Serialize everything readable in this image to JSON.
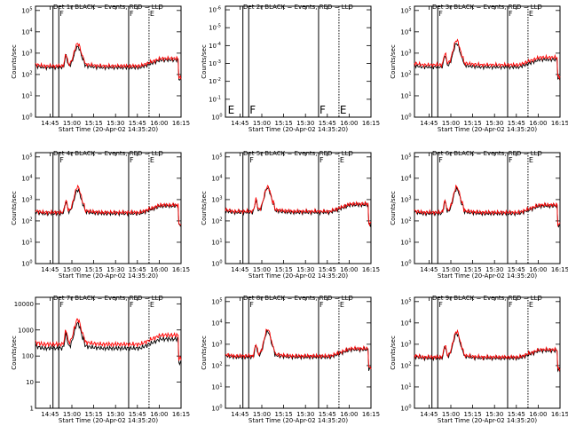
{
  "colors": {
    "events": "#000000",
    "lld": "#ff0000",
    "background": "#ffffff",
    "axis": "#000000"
  },
  "chart_data": [
    {
      "type": "line",
      "panel": 1,
      "title": "Det 1r BLACK = Events, RED = LLD",
      "xlabel": "Start Time (20-Apr-02 14:35:20)",
      "ylabel": "Counts/sec",
      "x_ticks": [
        "14:45",
        "15:00",
        "15:15",
        "15:30",
        "15:45",
        "16:00",
        "16:15"
      ],
      "y_ticks": [
        "10^0",
        "10^1",
        "10^2",
        "10^3",
        "10^4",
        "10^5"
      ],
      "y_scale": "log",
      "ylim_log10": [
        0,
        5.2
      ],
      "marker_letters": [
        "F",
        "F",
        "E"
      ],
      "series": [
        {
          "name": "Events",
          "color": "#000000",
          "level_log10": 2.33,
          "peak_log10": 3.3
        },
        {
          "name": "LLD",
          "color": "#ff0000",
          "level_log10": 2.4,
          "peak_log10": 3.45
        }
      ]
    },
    {
      "type": "line",
      "panel": 2,
      "title": "Det 2r BLACK = Events, RED = LLD",
      "xlabel": "Start Time (20-Apr-02 14:35:20)",
      "ylabel": "Counts/sec",
      "x_ticks": [
        "14:45",
        "15:00",
        "15:15",
        "15:30",
        "15:45",
        "16:00",
        "16:15"
      ],
      "y_ticks": [
        "10^0",
        "10^-1",
        "10^-2",
        "10^-3",
        "10^-4",
        "10^-5",
        "10^-6"
      ],
      "y_scale": "log",
      "ylim_log10": [
        0,
        -6.2
      ],
      "marker_letters": [
        "E",
        "F",
        "F",
        "E"
      ],
      "series": []
    },
    {
      "type": "line",
      "panel": 3,
      "title": "Det 3r BLACK = Events, RED = LLD",
      "xlabel": "Start Time (20-Apr-02 14:35:20)",
      "ylabel": "Counts/sec",
      "x_ticks": [
        "14:45",
        "15:00",
        "15:15",
        "15:30",
        "15:45",
        "16:00",
        "16:15"
      ],
      "y_ticks": [
        "10^0",
        "10^1",
        "10^2",
        "10^3",
        "10^4",
        "10^5"
      ],
      "y_scale": "log",
      "ylim_log10": [
        0,
        5.2
      ],
      "marker_letters": [
        "F",
        "F",
        "E"
      ],
      "series": [
        {
          "name": "Events",
          "color": "#000000",
          "level_log10": 2.35,
          "peak_log10": 3.45
        },
        {
          "name": "LLD",
          "color": "#ff0000",
          "level_log10": 2.45,
          "peak_log10": 3.6
        }
      ]
    },
    {
      "type": "line",
      "panel": 4,
      "title": "Det 4r BLACK = Events, RED = LLD",
      "xlabel": "Start Time (20-Apr-02 14:35:20)",
      "ylabel": "Counts/sec",
      "x_ticks": [
        "14:45",
        "15:00",
        "15:15",
        "15:30",
        "15:45",
        "16:00",
        "16:15"
      ],
      "y_ticks": [
        "10^0",
        "10^1",
        "10^2",
        "10^3",
        "10^4",
        "10^5"
      ],
      "y_scale": "log",
      "ylim_log10": [
        0,
        5.2
      ],
      "marker_letters": [
        "F",
        "F",
        "E"
      ],
      "series": [
        {
          "name": "Events",
          "color": "#000000",
          "level_log10": 2.35,
          "peak_log10": 3.45
        },
        {
          "name": "LLD",
          "color": "#ff0000",
          "level_log10": 2.4,
          "peak_log10": 3.6
        }
      ]
    },
    {
      "type": "line",
      "panel": 5,
      "title": "Det 5r BLACK = Events, RED = LLD",
      "xlabel": "Start Time (20-Apr-02 14:35:20)",
      "ylabel": "Counts/sec",
      "x_ticks": [
        "14:45",
        "15:00",
        "15:15",
        "15:30",
        "15:45",
        "16:00",
        "16:15"
      ],
      "y_ticks": [
        "10^0",
        "10^1",
        "10^2",
        "10^3",
        "10^4",
        "10^5"
      ],
      "y_scale": "log",
      "ylim_log10": [
        0,
        5.2
      ],
      "marker_letters": [
        "F",
        "F",
        "E"
      ],
      "series": [
        {
          "name": "Events",
          "color": "#000000",
          "level_log10": 2.4,
          "peak_log10": 3.55
        },
        {
          "name": "LLD",
          "color": "#ff0000",
          "level_log10": 2.45,
          "peak_log10": 3.6
        }
      ]
    },
    {
      "type": "line",
      "panel": 6,
      "title": "Det 6r BLACK = Events, RED = LLD",
      "xlabel": "Start Time (20-Apr-02 14:35:20)",
      "ylabel": "Counts/sec",
      "x_ticks": [
        "14:45",
        "15:00",
        "15:15",
        "15:30",
        "15:45",
        "16:00",
        "16:15"
      ],
      "y_ticks": [
        "10^0",
        "10^1",
        "10^2",
        "10^3",
        "10^4",
        "10^5"
      ],
      "y_scale": "log",
      "ylim_log10": [
        0,
        5.2
      ],
      "marker_letters": [
        "F",
        "F",
        "E"
      ],
      "series": [
        {
          "name": "Events",
          "color": "#000000",
          "level_log10": 2.35,
          "peak_log10": 3.5
        },
        {
          "name": "LLD",
          "color": "#ff0000",
          "level_log10": 2.4,
          "peak_log10": 3.6
        }
      ]
    },
    {
      "type": "line",
      "panel": 7,
      "title": "Det 7r BLACK = Events, RED = LLD",
      "xlabel": "Start Time (20-Apr-02 14:35:20)",
      "ylabel": "Counts/sec",
      "x_ticks": [
        "14:45",
        "15:00",
        "15:15",
        "15:30",
        "15:45",
        "16:00",
        "16:15"
      ],
      "y_ticks": [
        "1",
        "10",
        "100",
        "1000",
        "10000"
      ],
      "y_scale": "log",
      "ylim_log10": [
        0,
        4.25
      ],
      "marker_letters": [
        "F",
        "F",
        "E"
      ],
      "series": [
        {
          "name": "Events",
          "color": "#000000",
          "level_log10": 2.3,
          "peak_log10": 3.25
        },
        {
          "name": "LLD",
          "color": "#ff0000",
          "level_log10": 2.45,
          "peak_log10": 3.4
        }
      ]
    },
    {
      "type": "line",
      "panel": 8,
      "title": "Det 8r BLACK = Events, RED = LLD",
      "xlabel": "Start Time (20-Apr-02 14:35:20)",
      "ylabel": "Counts/sec",
      "x_ticks": [
        "14:45",
        "15:00",
        "15:15",
        "15:30",
        "15:45",
        "16:00",
        "16:15"
      ],
      "y_ticks": [
        "10^0",
        "10^1",
        "10^2",
        "10^3",
        "10^4",
        "10^5"
      ],
      "y_scale": "log",
      "ylim_log10": [
        0,
        5.2
      ],
      "marker_letters": [
        "F",
        "F",
        "E"
      ],
      "series": [
        {
          "name": "Events",
          "color": "#000000",
          "level_log10": 2.4,
          "peak_log10": 3.6
        },
        {
          "name": "LLD",
          "color": "#ff0000",
          "level_log10": 2.45,
          "peak_log10": 3.7
        }
      ]
    },
    {
      "type": "line",
      "panel": 9,
      "title": "Det 9r BLACK = Events, RED = LLD",
      "xlabel": "Start Time (20-Apr-02 14:35:20)",
      "ylabel": "Counts/sec",
      "x_ticks": [
        "14:45",
        "15:00",
        "15:15",
        "15:30",
        "15:45",
        "16:00",
        "16:15"
      ],
      "y_ticks": [
        "10^0",
        "10^1",
        "10^2",
        "10^3",
        "10^4",
        "10^5"
      ],
      "y_scale": "log",
      "ylim_log10": [
        0,
        5.2
      ],
      "marker_letters": [
        "F",
        "F",
        "E"
      ],
      "series": [
        {
          "name": "Events",
          "color": "#000000",
          "level_log10": 2.35,
          "peak_log10": 3.5
        },
        {
          "name": "LLD",
          "color": "#ff0000",
          "level_log10": 2.4,
          "peak_log10": 3.6
        }
      ]
    }
  ]
}
